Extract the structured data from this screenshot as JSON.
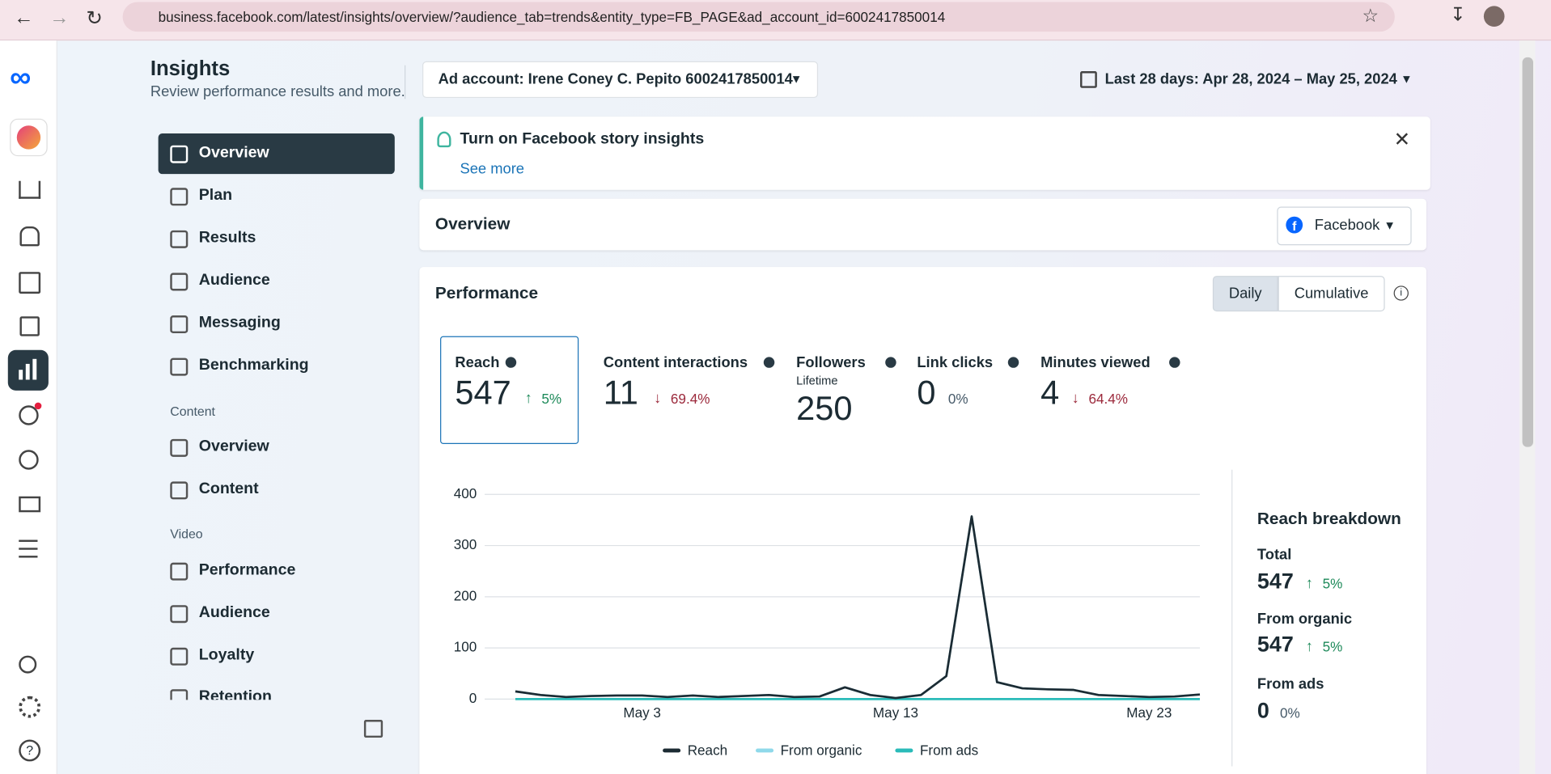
{
  "browser": {
    "url": "business.facebook.com/latest/insights/overview/?audience_tab=trends&entity_type=FB_PAGE&ad_account_id=6002417850014"
  },
  "header": {
    "title": "Insights",
    "subtitle": "Review performance results and more.",
    "ad_account": "Ad account: Irene Coney C. Pepito 6002417850014",
    "date_range": "Last 28 days: Apr 28, 2024 – May 25, 2024"
  },
  "nav": {
    "items": [
      "Overview",
      "Plan",
      "Results",
      "Audience",
      "Messaging",
      "Benchmarking"
    ],
    "active": 0,
    "sections": [
      {
        "title": "Content",
        "items": [
          "Overview",
          "Content"
        ]
      },
      {
        "title": "Video",
        "items": [
          "Performance",
          "Audience",
          "Loyalty",
          "Retention"
        ]
      }
    ]
  },
  "banner": {
    "title": "Turn on Facebook story insights",
    "link": "See more"
  },
  "overview": {
    "title": "Overview",
    "platform": "Facebook"
  },
  "performance": {
    "title": "Performance",
    "toggles": [
      "Daily",
      "Cumulative"
    ],
    "active_toggle": 0,
    "metrics": [
      {
        "label": "Reach",
        "value": 547,
        "change": "5%",
        "direction": "up"
      },
      {
        "label": "Content interactions",
        "value": 11,
        "change": "69.4%",
        "direction": "down"
      },
      {
        "label": "Followers",
        "sublabel": "Lifetime",
        "value": 250
      },
      {
        "label": "Link clicks",
        "value": 0,
        "change": "0%"
      },
      {
        "label": "Minutes viewed",
        "value": 4,
        "change": "64.4%",
        "direction": "down"
      }
    ],
    "selected_metric": 0
  },
  "breakdown": {
    "title": "Reach breakdown",
    "items": [
      {
        "label": "Total",
        "value": 547,
        "change": "5%",
        "direction": "up"
      },
      {
        "label": "From organic",
        "value": 547,
        "change": "5%",
        "direction": "up"
      },
      {
        "label": "From ads",
        "value": 0,
        "change": "0%"
      }
    ]
  },
  "chart_data": {
    "type": "line",
    "categories": [
      null,
      null,
      null,
      null,
      null,
      "May 3",
      null,
      null,
      null,
      null,
      null,
      null,
      null,
      null,
      null,
      "May 13",
      null,
      null,
      null,
      null,
      null,
      null,
      null,
      null,
      null,
      "May 23",
      null,
      null
    ],
    "series": [
      {
        "name": "Reach",
        "color": "#1c2b33",
        "values": [
          15,
          8,
          4,
          6,
          7,
          7,
          4,
          7,
          4,
          6,
          8,
          4,
          5,
          23,
          8,
          2,
          8,
          45,
          357,
          33,
          21,
          19,
          18,
          8,
          6,
          4,
          5,
          9
        ]
      },
      {
        "name": "From organic",
        "color": "#8fd9ea",
        "values": [
          15,
          8,
          4,
          6,
          7,
          7,
          4,
          7,
          4,
          6,
          8,
          4,
          5,
          23,
          8,
          2,
          8,
          45,
          357,
          33,
          21,
          19,
          18,
          8,
          6,
          4,
          5,
          9
        ]
      },
      {
        "name": "From ads",
        "color": "#2abbb9",
        "values": [
          0,
          0,
          0,
          0,
          0,
          0,
          0,
          0,
          0,
          0,
          0,
          0,
          0,
          0,
          0,
          0,
          0,
          0,
          0,
          0,
          0,
          0,
          0,
          0,
          0,
          0,
          0,
          0
        ]
      }
    ],
    "ylim": [
      0,
      400
    ],
    "yticks": [
      0,
      100,
      200,
      300,
      400
    ],
    "grid": true,
    "legend": "bottom"
  }
}
